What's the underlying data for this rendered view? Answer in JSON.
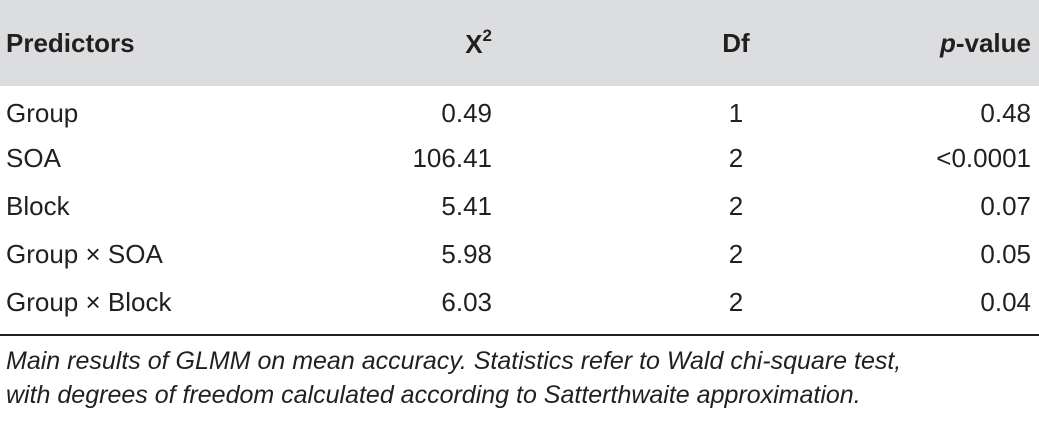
{
  "table": {
    "headers": {
      "predictors": "Predictors",
      "chi_base": "X",
      "chi_sup": "2",
      "df": "Df",
      "p_italic": "p",
      "p_rest": "-value"
    },
    "rows": [
      {
        "predictor": "Group",
        "chi2": "0.49",
        "df": "1",
        "p": "0.48"
      },
      {
        "predictor": "SOA",
        "chi2": "106.41",
        "df": "2",
        "p": "<0.0001"
      },
      {
        "predictor": "Block",
        "chi2": "5.41",
        "df": "2",
        "p": "0.07"
      },
      {
        "predictor": "Group × SOA",
        "chi2": "5.98",
        "df": "2",
        "p": "0.05"
      },
      {
        "predictor": "Group × Block",
        "chi2": "6.03",
        "df": "2",
        "p": "0.04"
      }
    ]
  },
  "caption": {
    "line1": "Main results of GLMM on mean accuracy. Statistics refer to Wald chi-square test,",
    "line2": "with degrees of freedom calculated according to Satterthwaite approximation."
  },
  "colors": {
    "header_bg": "#dcdddf",
    "text": "#231f20"
  }
}
